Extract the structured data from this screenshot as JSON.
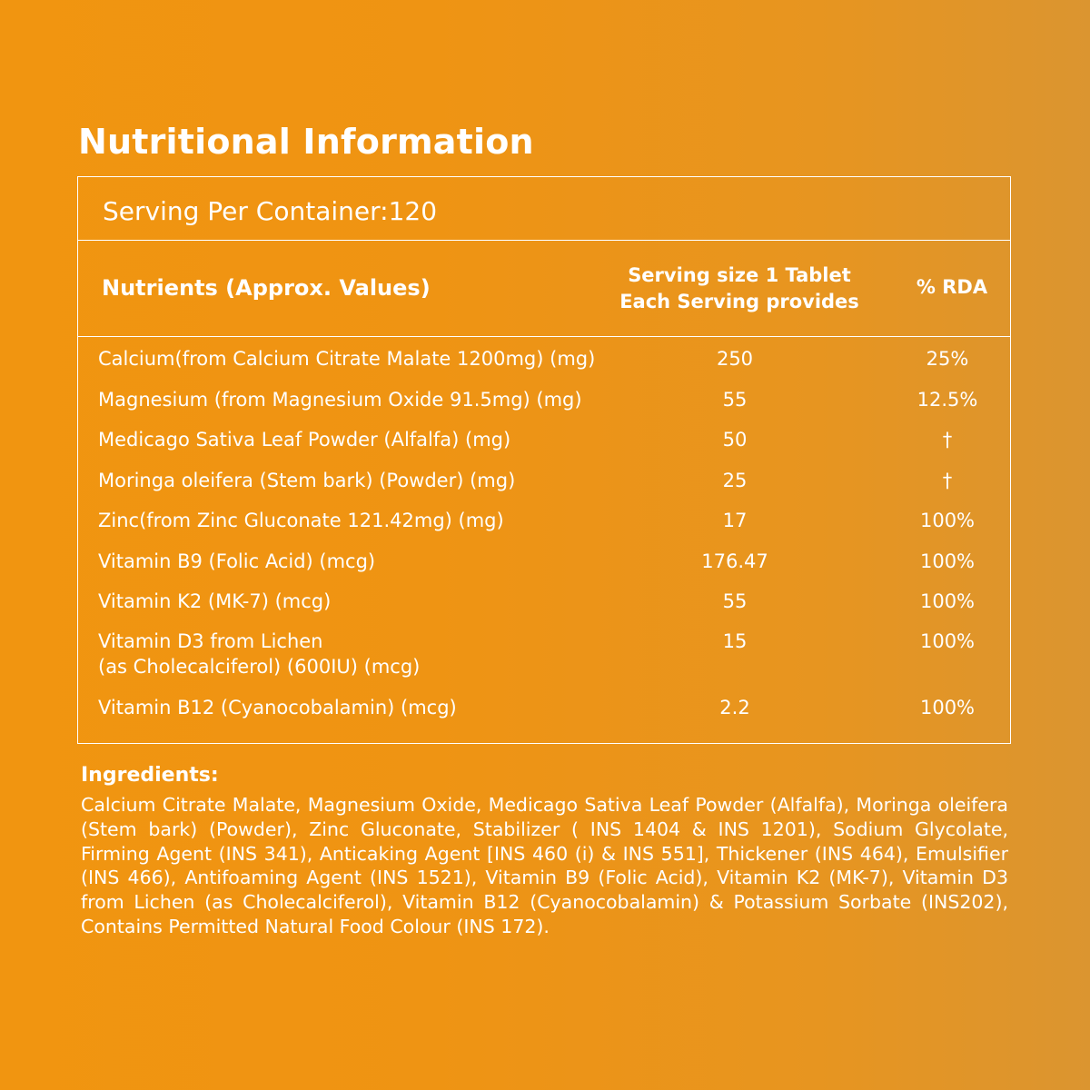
{
  "title": "Nutritional Information",
  "serving_per_container": "Serving Per Container:120",
  "header": {
    "nutrients": "Nutrients (Approx. Values)",
    "serving_line1": "Serving size 1 Tablet",
    "serving_line2": "Each Serving provides",
    "rda": "% RDA"
  },
  "rows": [
    {
      "name": "Calcium(from Calcium Citrate Malate 1200mg) (mg)",
      "name2": "",
      "value": "250",
      "rda": "25%"
    },
    {
      "name": "Magnesium (from Magnesium Oxide 91.5mg) (mg)",
      "name2": "",
      "value": "55",
      "rda": "12.5%"
    },
    {
      "name": "Medicago Sativa Leaf Powder (Alfalfa) (mg)",
      "name2": "",
      "value": "50",
      "rda": "†"
    },
    {
      "name": "Moringa oleifera (Stem bark) (Powder) (mg)",
      "name2": "",
      "value": "25",
      "rda": "†"
    },
    {
      "name": "Zinc(from Zinc Gluconate 121.42mg) (mg)",
      "name2": "",
      "value": "17",
      "rda": "100%"
    },
    {
      "name": "Vitamin B9 (Folic Acid) (mcg)",
      "name2": "",
      "value": "176.47",
      "rda": "100%"
    },
    {
      "name": "Vitamin K2 (MK-7) (mcg)",
      "name2": "",
      "value": "55",
      "rda": "100%"
    },
    {
      "name": "Vitamin D3 from Lichen",
      "name2": "(as Cholecalciferol) (600IU) (mcg)",
      "value": "15",
      "rda": "100%"
    },
    {
      "name": "Vitamin B12 (Cyanocobalamin) (mcg)",
      "name2": "",
      "value": "2.2",
      "rda": "100%"
    }
  ],
  "ingredients": {
    "title": "Ingredients:",
    "text": "Calcium Citrate Malate, Magnesium Oxide, Medicago Sativa Leaf Powder (Alfalfa), Moringa oleifera (Stem bark) (Powder), Zinc Gluconate, Stabilizer ( INS 1404 & INS 1201), Sodium Glycolate, Firming Agent (INS 341), Anticaking Agent [INS 460 (i) & INS 551], Thickener (INS 464), Emulsifier (INS 466), Antifoaming Agent (INS 1521), Vitamin B9 (Folic Acid), Vitamin K2 (MK-7), Vitamin D3 from Lichen (as Cholecalciferol), Vitamin B12 (Cyanocobalamin) & Potassium Sorbate (INS202), Contains Permitted Natural Food Colour (INS 172)."
  }
}
